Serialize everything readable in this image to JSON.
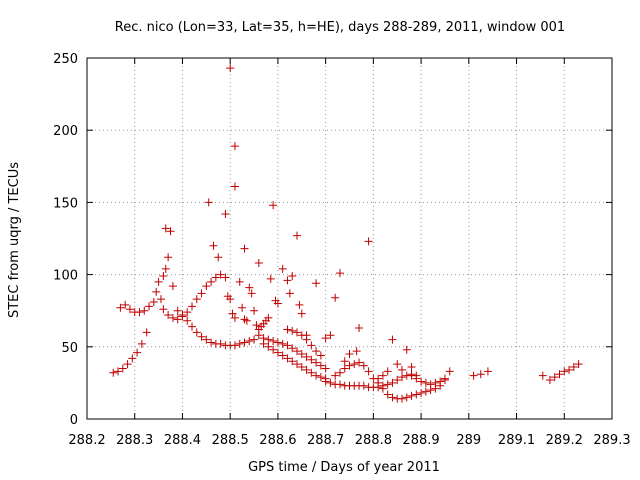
{
  "chart_data": {
    "type": "scatter",
    "title": "Rec. nico (Lon=33, Lat=35, h=HE), days 288-289, 2011, window 001",
    "xlabel": "GPS time / Days of year 2011",
    "ylabel": "STEC from uqrg / TECUs",
    "xlim": [
      288.2,
      289.3
    ],
    "ylim": [
      0,
      250
    ],
    "xticks": [
      "288.2",
      "288.3",
      "288.4",
      "288.5",
      "288.6",
      "288.7",
      "288.8",
      "288.9",
      "289",
      "289.1",
      "289.2",
      "289.3"
    ],
    "yticks": [
      "0",
      "50",
      "100",
      "150",
      "200",
      "250"
    ],
    "grid": true,
    "marker_color": "#c00000",
    "series": [
      {
        "points": [
          [
            288.255,
            32
          ],
          [
            288.265,
            33
          ],
          [
            288.275,
            35
          ],
          [
            288.285,
            38
          ],
          [
            288.295,
            42
          ],
          [
            288.305,
            46
          ],
          [
            288.315,
            52
          ],
          [
            288.325,
            60
          ],
          [
            288.27,
            77
          ],
          [
            288.28,
            79
          ],
          [
            288.29,
            76
          ],
          [
            288.3,
            74
          ],
          [
            288.31,
            74
          ],
          [
            288.32,
            75
          ],
          [
            288.33,
            78
          ],
          [
            288.34,
            81
          ],
          [
            288.345,
            88
          ],
          [
            288.35,
            95
          ],
          [
            288.36,
            99
          ],
          [
            288.365,
            104
          ],
          [
            288.37,
            112
          ],
          [
            288.375,
            130
          ],
          [
            288.365,
            132
          ],
          [
            288.38,
            92
          ],
          [
            288.355,
            83
          ],
          [
            288.36,
            76
          ],
          [
            288.37,
            72
          ],
          [
            288.38,
            70
          ],
          [
            288.39,
            69
          ],
          [
            288.4,
            71
          ],
          [
            288.41,
            74
          ],
          [
            288.42,
            78
          ],
          [
            288.43,
            83
          ],
          [
            288.44,
            87
          ],
          [
            288.45,
            92
          ],
          [
            288.46,
            95
          ],
          [
            288.47,
            98
          ],
          [
            288.48,
            100
          ],
          [
            288.49,
            98
          ],
          [
            288.39,
            75
          ],
          [
            288.4,
            72
          ],
          [
            288.41,
            68
          ],
          [
            288.42,
            64
          ],
          [
            288.43,
            60
          ],
          [
            288.44,
            57
          ],
          [
            288.45,
            55
          ],
          [
            288.46,
            53
          ],
          [
            288.47,
            52
          ],
          [
            288.48,
            52
          ],
          [
            288.49,
            51
          ],
          [
            288.5,
            51
          ],
          [
            288.51,
            51
          ],
          [
            288.52,
            52
          ],
          [
            288.53,
            53
          ],
          [
            288.54,
            54
          ],
          [
            288.55,
            55
          ],
          [
            288.455,
            150
          ],
          [
            288.465,
            120
          ],
          [
            288.475,
            112
          ],
          [
            288.49,
            142
          ],
          [
            288.5,
            243
          ],
          [
            288.51,
            189
          ],
          [
            288.51,
            161
          ],
          [
            288.53,
            118
          ],
          [
            288.56,
            108
          ],
          [
            288.495,
            85
          ],
          [
            288.5,
            83
          ],
          [
            288.505,
            73
          ],
          [
            288.51,
            70
          ],
          [
            288.52,
            95
          ],
          [
            288.525,
            77
          ],
          [
            288.53,
            69
          ],
          [
            288.535,
            68
          ],
          [
            288.54,
            91
          ],
          [
            288.545,
            87
          ],
          [
            288.55,
            75
          ],
          [
            288.555,
            65
          ],
          [
            288.56,
            62
          ],
          [
            288.565,
            64
          ],
          [
            288.57,
            66
          ],
          [
            288.575,
            68
          ],
          [
            288.58,
            70
          ],
          [
            288.585,
            97
          ],
          [
            288.59,
            148
          ],
          [
            288.595,
            82
          ],
          [
            288.6,
            80
          ],
          [
            288.61,
            104
          ],
          [
            288.62,
            96
          ],
          [
            288.625,
            87
          ],
          [
            288.63,
            99
          ],
          [
            288.64,
            127
          ],
          [
            288.645,
            79
          ],
          [
            288.65,
            73
          ],
          [
            288.66,
            58
          ],
          [
            288.56,
            58
          ],
          [
            288.57,
            56
          ],
          [
            288.58,
            55
          ],
          [
            288.59,
            54
          ],
          [
            288.6,
            53
          ],
          [
            288.61,
            52
          ],
          [
            288.62,
            51
          ],
          [
            288.63,
            49
          ],
          [
            288.64,
            47
          ],
          [
            288.65,
            45
          ],
          [
            288.66,
            43
          ],
          [
            288.67,
            41
          ],
          [
            288.68,
            39
          ],
          [
            288.69,
            37
          ],
          [
            288.7,
            35
          ],
          [
            288.57,
            52
          ],
          [
            288.58,
            50
          ],
          [
            288.59,
            48
          ],
          [
            288.6,
            46
          ],
          [
            288.61,
            44
          ],
          [
            288.62,
            42
          ],
          [
            288.63,
            40
          ],
          [
            288.64,
            38
          ],
          [
            288.65,
            36
          ],
          [
            288.66,
            34
          ],
          [
            288.67,
            32
          ],
          [
            288.68,
            30
          ],
          [
            288.69,
            29
          ],
          [
            288.7,
            28
          ],
          [
            288.62,
            62
          ],
          [
            288.63,
            61
          ],
          [
            288.64,
            60
          ],
          [
            288.65,
            58
          ],
          [
            288.66,
            55
          ],
          [
            288.67,
            51
          ],
          [
            288.68,
            47
          ],
          [
            288.69,
            44
          ],
          [
            288.68,
            94
          ],
          [
            288.7,
            56
          ],
          [
            288.71,
            58
          ],
          [
            288.72,
            84
          ],
          [
            288.73,
            101
          ],
          [
            288.74,
            40
          ],
          [
            288.75,
            45
          ],
          [
            288.765,
            47
          ],
          [
            288.77,
            63
          ],
          [
            288.79,
            123
          ],
          [
            288.7,
            26
          ],
          [
            288.71,
            25
          ],
          [
            288.72,
            24
          ],
          [
            288.73,
            24
          ],
          [
            288.74,
            23
          ],
          [
            288.75,
            23
          ],
          [
            288.76,
            23
          ],
          [
            288.77,
            23
          ],
          [
            288.78,
            23
          ],
          [
            288.79,
            22
          ],
          [
            288.8,
            22
          ],
          [
            288.81,
            22
          ],
          [
            288.82,
            23
          ],
          [
            288.72,
            30
          ],
          [
            288.73,
            32
          ],
          [
            288.74,
            35
          ],
          [
            288.75,
            37
          ],
          [
            288.76,
            38
          ],
          [
            288.77,
            39
          ],
          [
            288.78,
            37
          ],
          [
            288.79,
            33
          ],
          [
            288.8,
            28
          ],
          [
            288.81,
            25
          ],
          [
            288.82,
            21
          ],
          [
            288.83,
            17
          ],
          [
            288.84,
            15
          ],
          [
            288.85,
            14
          ],
          [
            288.86,
            14
          ],
          [
            288.87,
            15
          ],
          [
            288.88,
            16
          ],
          [
            288.89,
            17
          ],
          [
            288.9,
            18
          ],
          [
            288.91,
            19
          ],
          [
            288.92,
            20
          ],
          [
            288.93,
            21
          ],
          [
            288.94,
            23
          ],
          [
            288.95,
            27
          ],
          [
            288.81,
            28
          ],
          [
            288.82,
            30
          ],
          [
            288.83,
            33
          ],
          [
            288.84,
            55
          ],
          [
            288.85,
            38
          ],
          [
            288.86,
            34
          ],
          [
            288.87,
            48
          ],
          [
            288.88,
            36
          ],
          [
            288.88,
            30
          ],
          [
            288.89,
            28
          ],
          [
            288.9,
            26
          ],
          [
            288.91,
            25
          ],
          [
            288.92,
            24
          ],
          [
            288.93,
            25
          ],
          [
            288.94,
            26
          ],
          [
            288.95,
            28
          ],
          [
            288.96,
            33
          ],
          [
            288.83,
            24
          ],
          [
            288.84,
            25
          ],
          [
            288.85,
            27
          ],
          [
            288.86,
            29
          ],
          [
            288.87,
            30
          ],
          [
            288.88,
            31
          ],
          [
            288.89,
            30
          ],
          [
            289.01,
            30
          ],
          [
            289.025,
            31
          ],
          [
            289.04,
            33
          ],
          [
            289.155,
            30
          ],
          [
            289.17,
            27
          ],
          [
            289.18,
            29
          ],
          [
            289.19,
            31
          ],
          [
            289.2,
            33
          ],
          [
            289.21,
            34
          ],
          [
            289.22,
            36
          ],
          [
            289.23,
            38
          ]
        ]
      }
    ]
  }
}
